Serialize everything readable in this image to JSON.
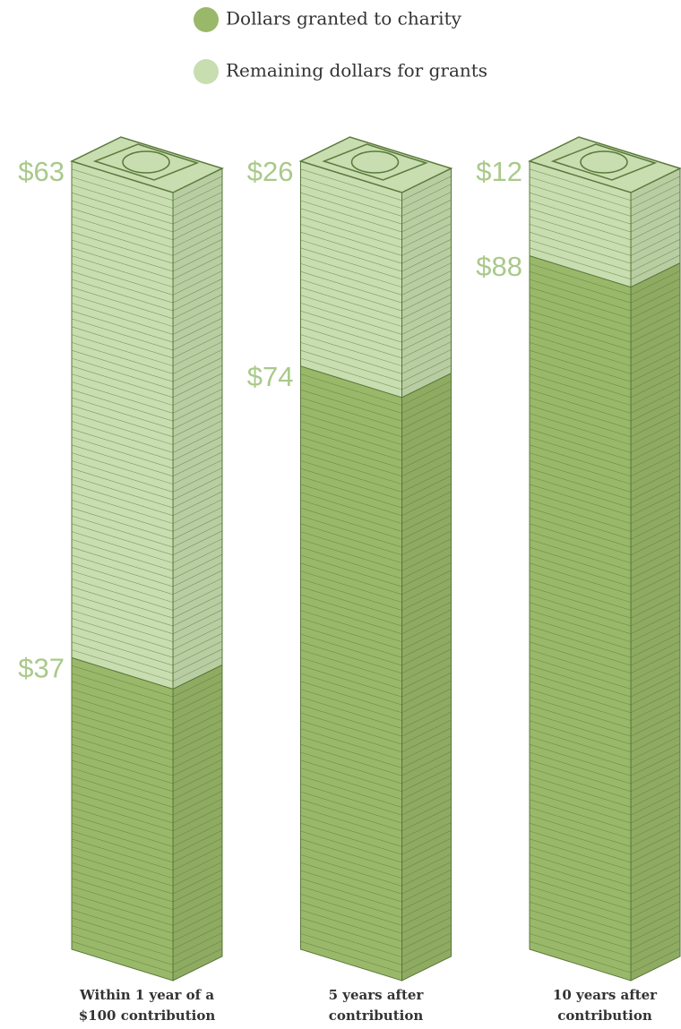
{
  "chart_data": {
    "type": "stacked-stack",
    "categories": [
      "Within 1 year of a $100 contribution",
      "5 years after contribution",
      "10 years after contribution"
    ],
    "series": [
      {
        "name": "Dollars granted to charity",
        "color": "#9ab86a",
        "values": [
          37,
          74,
          88
        ],
        "value_labels": [
          "$37",
          "$74",
          "$88"
        ]
      },
      {
        "name": "Remaining dollars for grants",
        "color": "#c8ddb0",
        "values": [
          63,
          26,
          12
        ],
        "value_labels": [
          "$63",
          "$26",
          "$12"
        ]
      }
    ]
  }
}
